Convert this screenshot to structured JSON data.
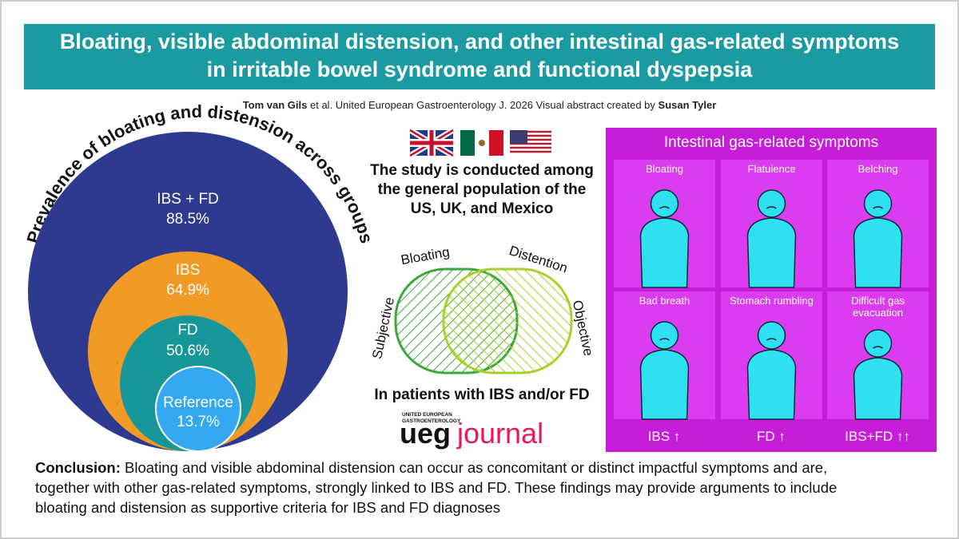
{
  "header": {
    "title_lines": [
      "Bloating, visible abdominal distension, and other intestinal gas-related symptoms",
      "in irritable bowel syndrome and functional dyspepsia"
    ],
    "byline": {
      "author": "Tom van Gils",
      "middle": "et al. United European Gastroenterology J. 2026 Visual abstract created by",
      "artist": "Susan Tyler"
    }
  },
  "prevalence": {
    "title": "Prevalence of bloating and distension across groups",
    "groups": [
      {
        "name": "IBS + FD",
        "value": "88.5%"
      },
      {
        "name": "IBS",
        "value": "64.9%"
      },
      {
        "name": "FD",
        "value": "50.6%"
      },
      {
        "name": "Reference",
        "value": "13.7%"
      }
    ]
  },
  "study": {
    "lines": [
      "The study is conducted among",
      "the general population of the",
      "US, UK, and Mexico"
    ],
    "venn_labels": {
      "left_top": "Bloating",
      "right_top": "Distention",
      "left_side": "Subjective",
      "right_side": "Objective"
    },
    "caption": "In patients with IBS and/or FD"
  },
  "logo": {
    "small_line1": "UNITED EUROPEAN",
    "small_line2": "GASTROENTEROLOGY",
    "left": "ueg",
    "right": "journal"
  },
  "symptoms": {
    "title": "Intestinal gas-related symptoms",
    "items": [
      [
        "Bloating"
      ],
      [
        "Flatulence"
      ],
      [
        "Belching"
      ],
      [
        "Bad breath"
      ],
      [
        "Stomach rumbling"
      ],
      [
        "Difficult gas",
        "evacuation"
      ]
    ],
    "associations": [
      "IBS ↑",
      "FD ↑",
      "IBS+FD ↑↑"
    ]
  },
  "conclusion": {
    "label": "Conclusion:",
    "lines": [
      "Bloating and visible abdominal distension can occur as concomitant or distinct impactful symptoms and are,",
      "together with other gas-related symptoms, strongly linked to IBS and FD. These findings may provide arguments to include",
      "bloating and distension as supportive criteria for IBS and FD diagnoses"
    ]
  }
}
